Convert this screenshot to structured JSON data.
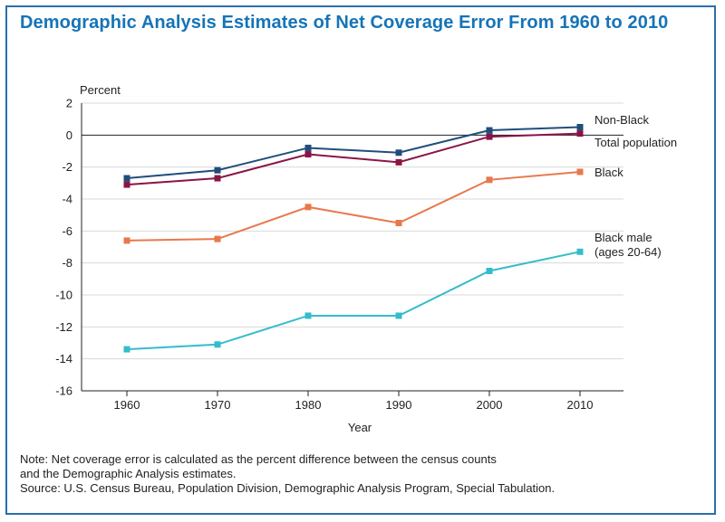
{
  "title": "Demographic Analysis Estimates of Net Coverage Error From 1960 to 2010",
  "note_line1": "Note: Net coverage error is calculated as the percent difference between the census counts",
  "note_line2": "and the Demographic Analysis estimates.",
  "source": "Source: U.S. Census Bureau, Population Division, Demographic Analysis Program, Special Tabulation.",
  "chart_data": {
    "type": "line",
    "title": "Demographic Analysis Estimates of Net Coverage Error From 1960 to 2010",
    "xlabel": "Year",
    "ylabel": "Percent",
    "x": [
      1960,
      1970,
      1980,
      1990,
      2000,
      2010
    ],
    "ylim": [
      -16,
      2
    ],
    "yticks": [
      2,
      0,
      -2,
      -4,
      -6,
      -8,
      -10,
      -12,
      -14,
      -16
    ],
    "grid": true,
    "legend": "direct labels at right end of lines",
    "series": [
      {
        "name": "Non-Black",
        "color": "#1f4e7d",
        "values": [
          -2.7,
          -2.2,
          -0.8,
          -1.1,
          0.3,
          0.5
        ]
      },
      {
        "name": "Total population",
        "color": "#8b1446",
        "values": [
          -3.1,
          -2.7,
          -1.2,
          -1.7,
          -0.1,
          0.1
        ]
      },
      {
        "name": "Black",
        "color": "#e8784d",
        "values": [
          -6.6,
          -6.5,
          -4.5,
          -5.5,
          -2.8,
          -2.3
        ]
      },
      {
        "name": "Black male (ages 20-64)",
        "label_lines": [
          "Black male",
          "(ages 20-64)"
        ],
        "color": "#35bccb",
        "values": [
          -13.4,
          -13.1,
          -11.3,
          -11.3,
          -8.5,
          -7.3
        ]
      }
    ]
  }
}
